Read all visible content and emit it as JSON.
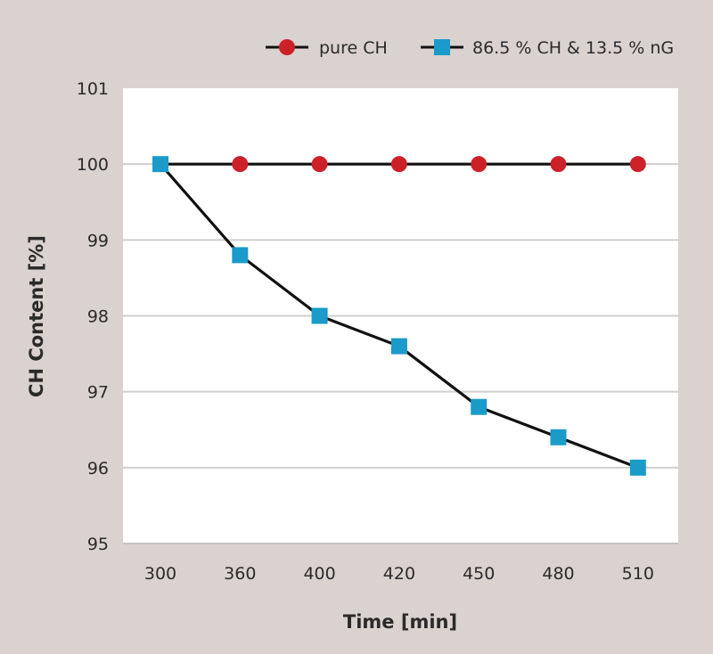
{
  "chart_data": {
    "type": "line",
    "title": "",
    "xlabel": "Time [min]",
    "ylabel": "CH Content [%]",
    "categories": [
      "300",
      "360",
      "400",
      "420",
      "450",
      "480",
      "510"
    ],
    "ylim": [
      95,
      101
    ],
    "yticks": [
      "95",
      "96",
      "97",
      "98",
      "99",
      "100",
      "101"
    ],
    "grid": true,
    "legend_position": "top-right",
    "series": [
      {
        "name": "pure CH",
        "marker": "circle",
        "color": "#cc2127",
        "line_color": "#111111",
        "values": [
          100,
          100,
          100,
          100,
          100,
          100,
          100
        ]
      },
      {
        "name": "86.5 % CH & 13.5 % nG",
        "marker": "square",
        "color": "#1a9bc9",
        "line_color": "#111111",
        "values": [
          100,
          98.8,
          98,
          97.6,
          96.8,
          96.4,
          96
        ]
      }
    ]
  },
  "colors": {
    "background": "#d9d2cf",
    "plot_background": "#ffffff",
    "grid": "#cfcfcf"
  }
}
